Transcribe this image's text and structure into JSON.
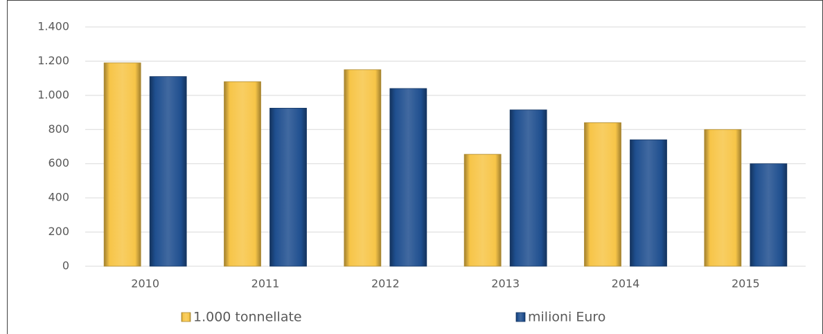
{
  "chart_data": {
    "type": "bar",
    "categories": [
      "2010",
      "2011",
      "2012",
      "2013",
      "2014",
      "2015"
    ],
    "series": [
      {
        "name": "1.000 tonnellate",
        "color": "#f7c548",
        "values": [
          1190,
          1080,
          1150,
          655,
          840,
          800
        ]
      },
      {
        "name": "milioni Euro",
        "color": "#1f4f8f",
        "values": [
          1110,
          925,
          1040,
          915,
          740,
          600
        ]
      }
    ],
    "ylim": [
      0,
      1400
    ],
    "yticks": [
      0,
      200,
      400,
      600,
      800,
      {
        "value": 1000,
        "label": "1.000"
      },
      {
        "value": 1200,
        "label": "1.200"
      },
      {
        "value": 1400,
        "label": "1.400"
      }
    ],
    "grid": true,
    "legend": "bottom"
  }
}
